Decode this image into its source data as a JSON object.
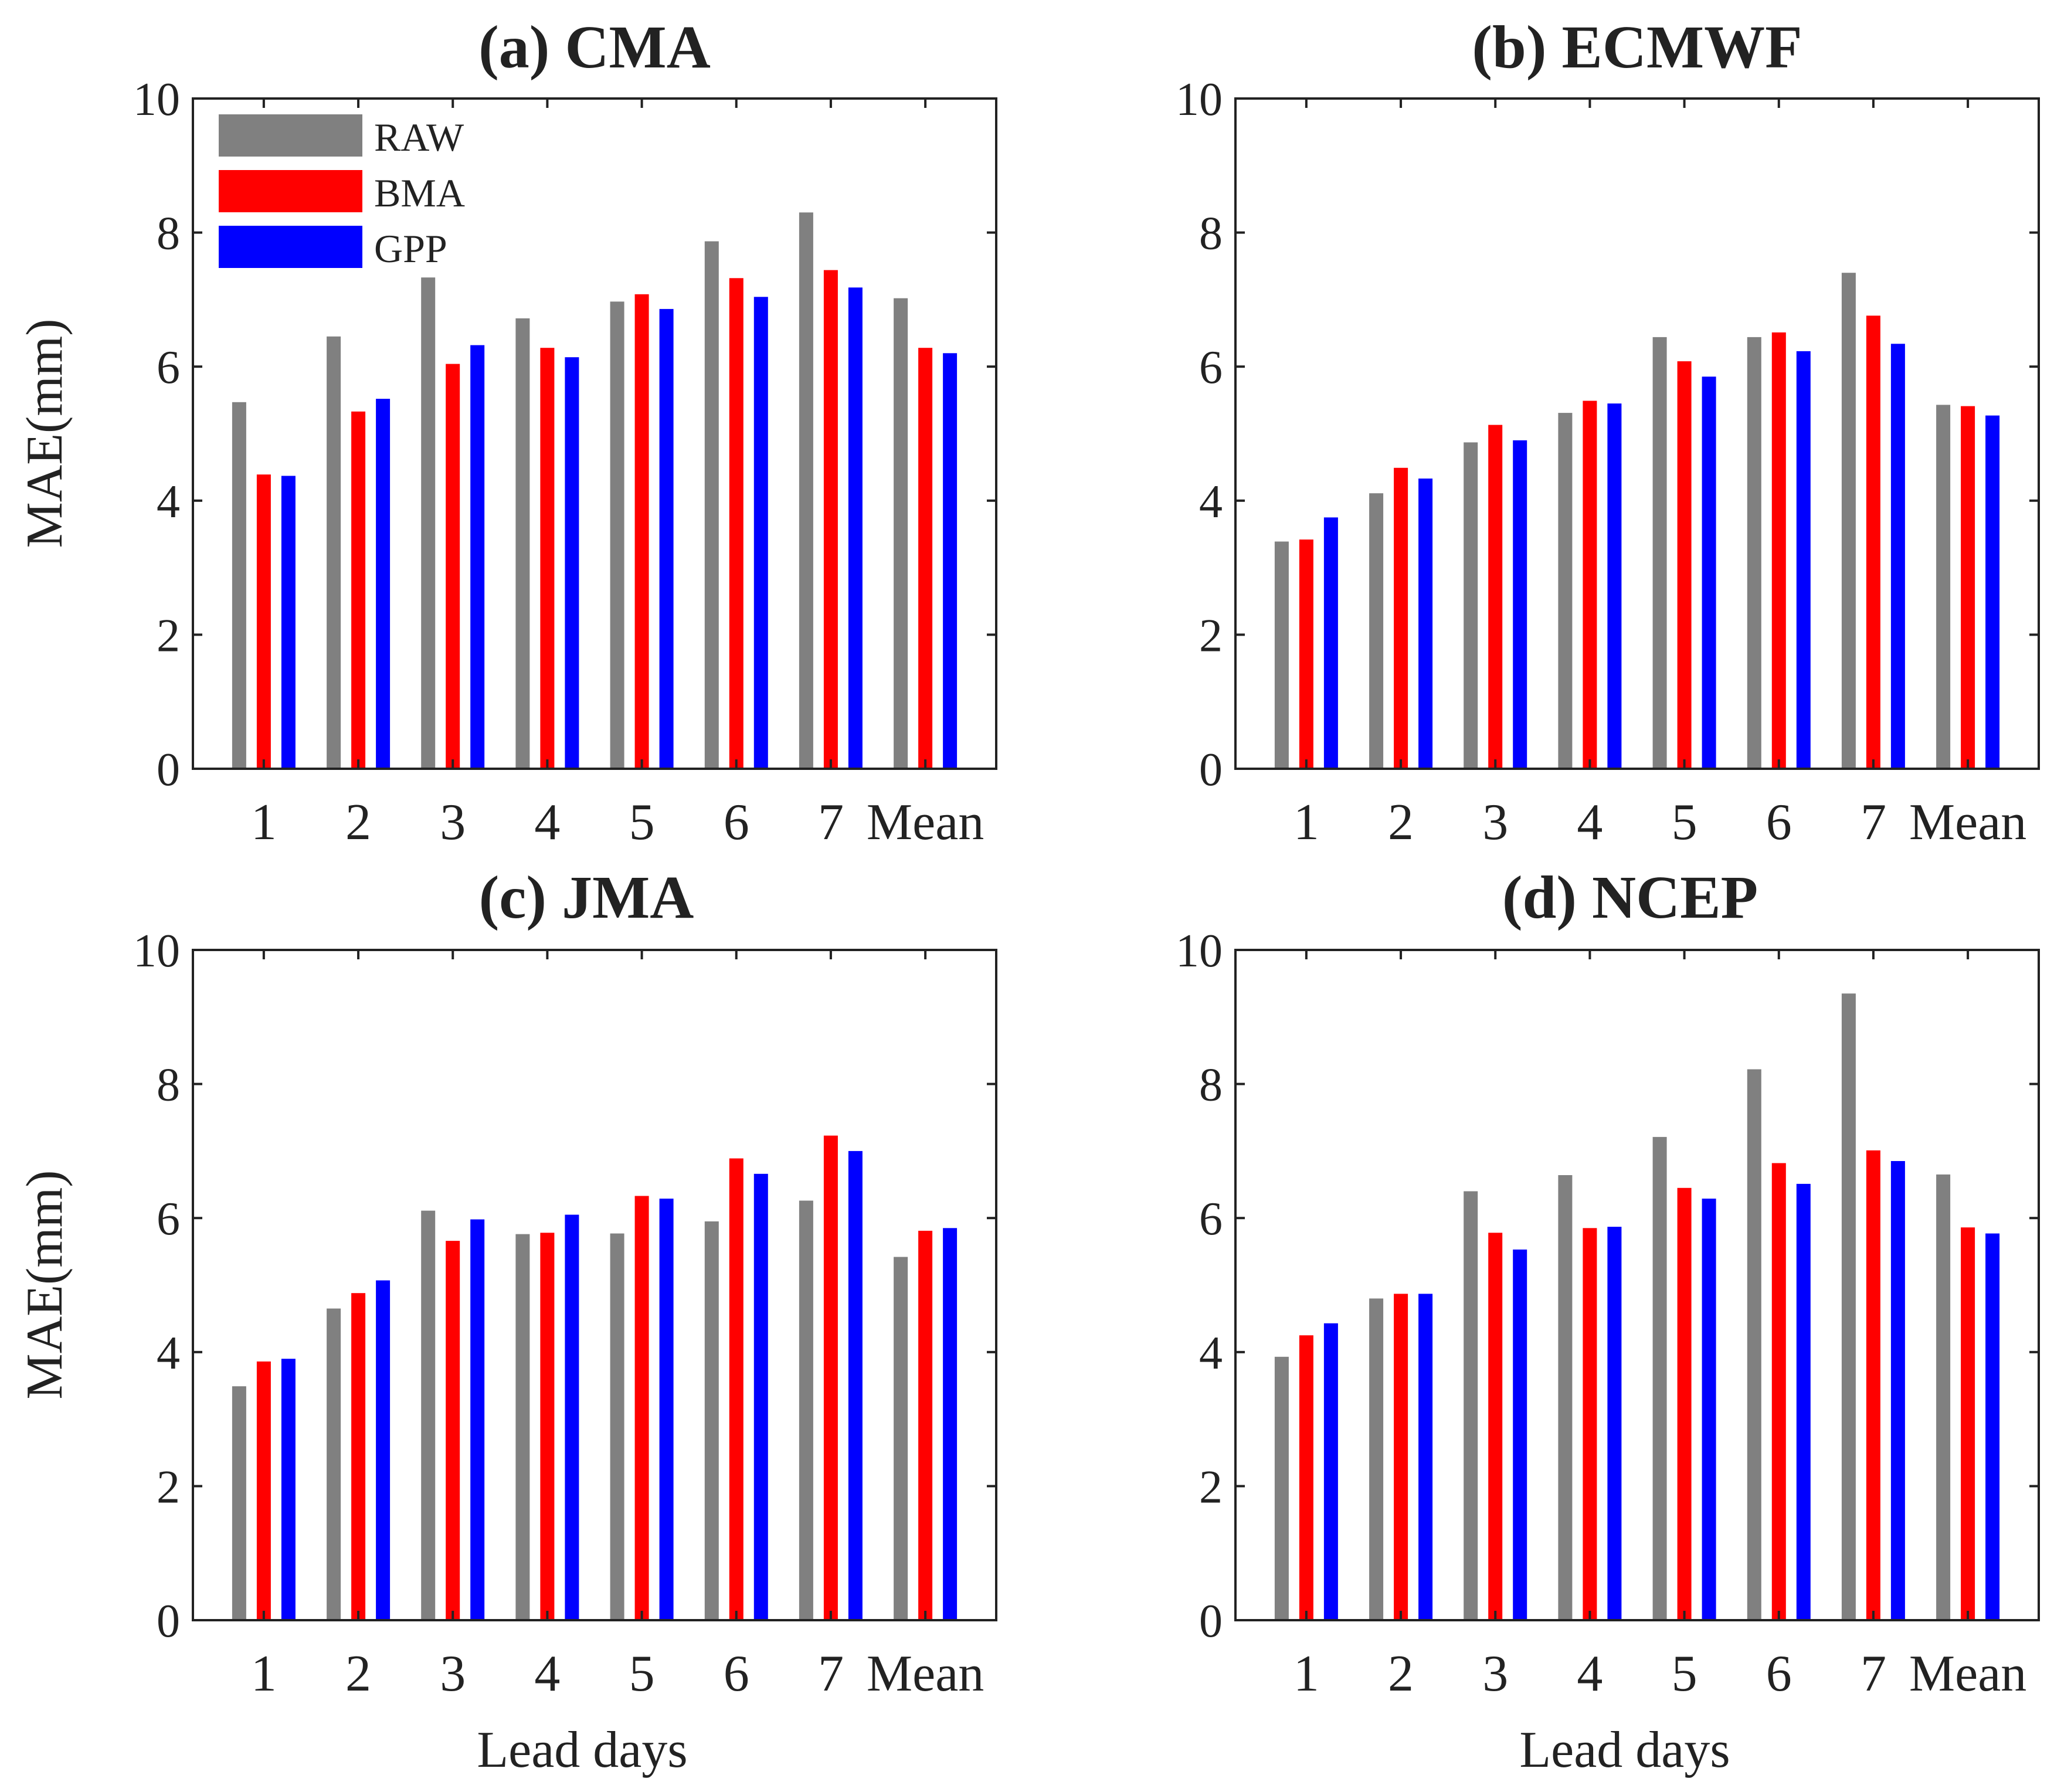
{
  "figure": {
    "series_colors": {
      "RAW": "#808080",
      "BMA": "#ff0000",
      "GPP": "#0000ff"
    }
  },
  "chart_data": [
    {
      "type": "bar",
      "title": "(a) CMA",
      "xlabel": "",
      "ylabel": "MAE(mm)",
      "ylim": [
        0,
        10
      ],
      "yticks": [
        "0",
        "2",
        "4",
        "6",
        "8",
        "10"
      ],
      "categories": [
        "1",
        "2",
        "3",
        "4",
        "5",
        "6",
        "7",
        "Mean"
      ],
      "legend": {
        "position": "top-left",
        "entries": [
          "RAW",
          "BMA",
          "GPP"
        ]
      },
      "series": [
        {
          "name": "RAW",
          "values": [
            5.47,
            6.45,
            7.33,
            6.72,
            6.97,
            7.87,
            8.3,
            7.02
          ]
        },
        {
          "name": "BMA",
          "values": [
            4.39,
            5.33,
            6.04,
            6.28,
            7.08,
            7.32,
            7.44,
            6.28
          ]
        },
        {
          "name": "GPP",
          "values": [
            4.37,
            5.52,
            6.32,
            6.14,
            6.86,
            7.04,
            7.18,
            6.2
          ]
        }
      ]
    },
    {
      "type": "bar",
      "title": "(b) ECMWF",
      "xlabel": "",
      "ylabel": "",
      "ylim": [
        0,
        10
      ],
      "yticks": [
        "0",
        "2",
        "4",
        "6",
        "8",
        "10"
      ],
      "categories": [
        "1",
        "2",
        "3",
        "4",
        "5",
        "6",
        "7",
        "Mean"
      ],
      "series": [
        {
          "name": "RAW",
          "values": [
            3.39,
            4.11,
            4.87,
            5.31,
            6.44,
            6.44,
            7.4,
            5.43
          ]
        },
        {
          "name": "BMA",
          "values": [
            3.42,
            4.49,
            5.13,
            5.49,
            6.08,
            6.51,
            6.76,
            5.41
          ]
        },
        {
          "name": "GPP",
          "values": [
            3.75,
            4.33,
            4.9,
            5.45,
            5.85,
            6.23,
            6.34,
            5.27
          ]
        }
      ]
    },
    {
      "type": "bar",
      "title": "(c) JMA",
      "xlabel": "Lead days",
      "ylabel": "MAE(mm)",
      "ylim": [
        0,
        10
      ],
      "yticks": [
        "0",
        "2",
        "4",
        "6",
        "8",
        "10"
      ],
      "categories": [
        "1",
        "2",
        "3",
        "4",
        "5",
        "6",
        "7",
        "Mean"
      ],
      "series": [
        {
          "name": "RAW",
          "values": [
            3.49,
            4.65,
            6.11,
            5.76,
            5.77,
            5.95,
            6.26,
            5.42
          ]
        },
        {
          "name": "BMA",
          "values": [
            3.86,
            4.88,
            5.66,
            5.78,
            6.33,
            6.89,
            7.23,
            5.81
          ]
        },
        {
          "name": "GPP",
          "values": [
            3.9,
            5.07,
            5.98,
            6.05,
            6.29,
            6.66,
            7.0,
            5.85
          ]
        }
      ]
    },
    {
      "type": "bar",
      "title": "(d) NCEP",
      "xlabel": "Lead days",
      "ylabel": "",
      "ylim": [
        0,
        10
      ],
      "yticks": [
        "0",
        "2",
        "4",
        "6",
        "8",
        "10"
      ],
      "categories": [
        "1",
        "2",
        "3",
        "4",
        "5",
        "6",
        "7",
        "Mean"
      ],
      "series": [
        {
          "name": "RAW",
          "values": [
            3.93,
            4.8,
            6.4,
            6.64,
            7.21,
            8.22,
            9.35,
            6.65
          ]
        },
        {
          "name": "BMA",
          "values": [
            4.25,
            4.87,
            5.78,
            5.85,
            6.45,
            6.82,
            7.01,
            5.86
          ]
        },
        {
          "name": "GPP",
          "values": [
            4.43,
            4.87,
            5.53,
            5.87,
            6.29,
            6.51,
            6.85,
            5.77
          ]
        }
      ]
    }
  ]
}
